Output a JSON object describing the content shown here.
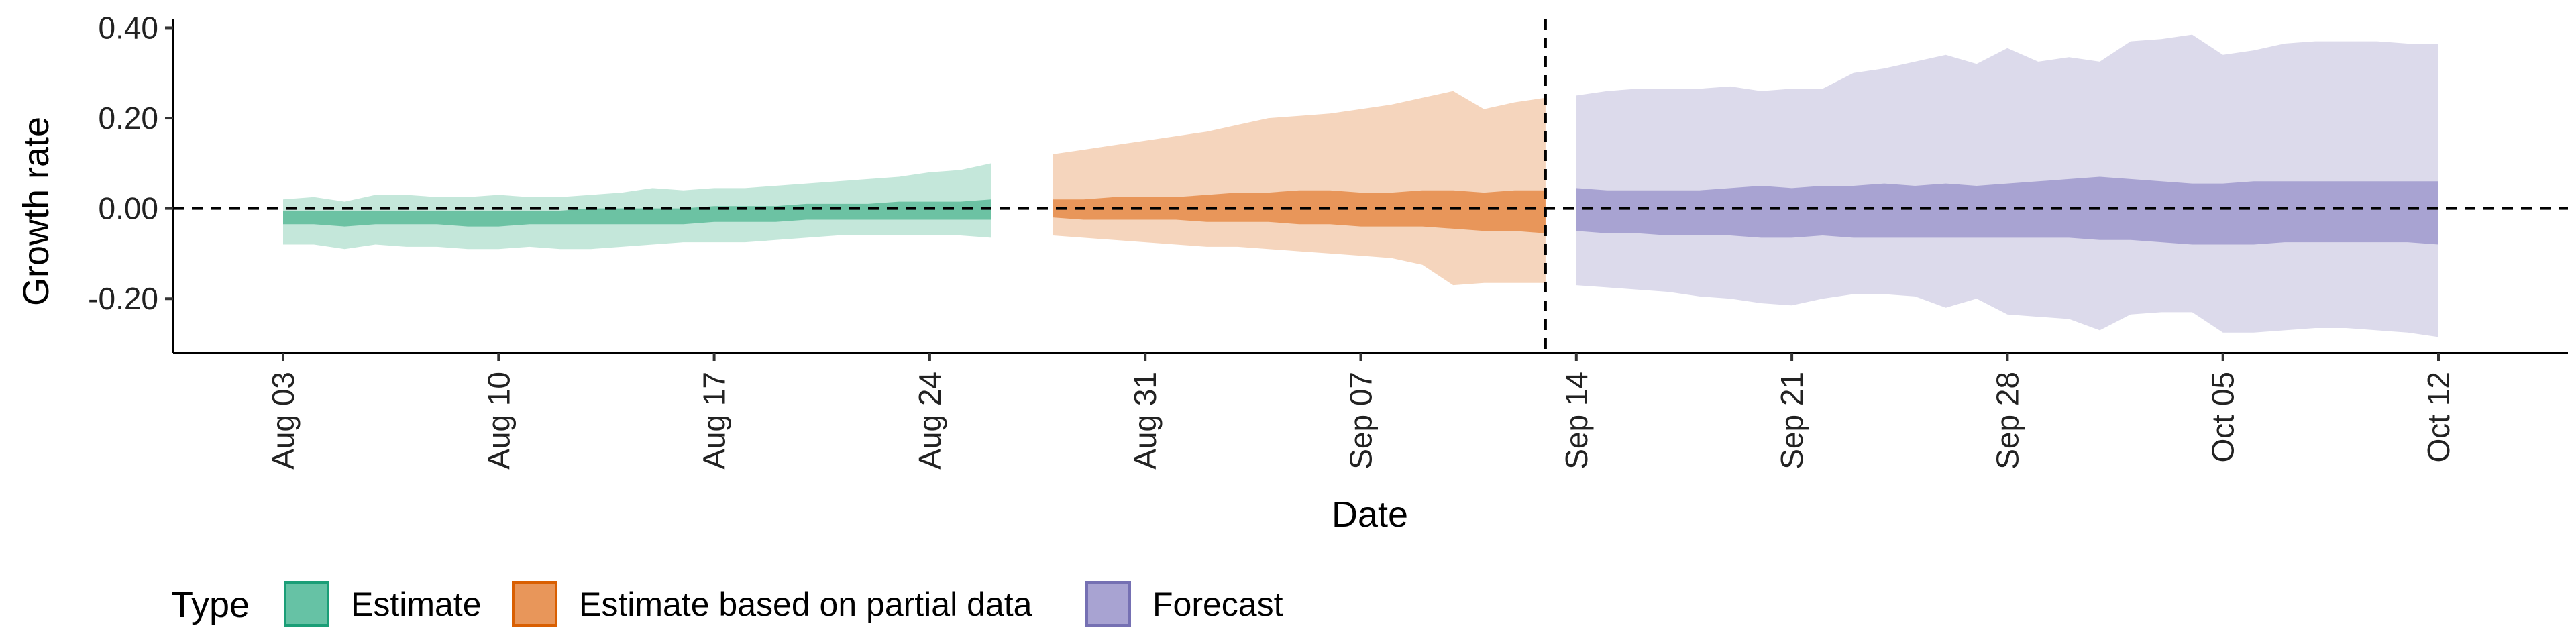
{
  "chart_data": {
    "type": "area",
    "title": "",
    "xlabel": "Date",
    "ylabel": "Growth rate",
    "ylim": [
      -0.32,
      0.42
    ],
    "x_start_date": "Aug 03",
    "x_range_days": [
      -5,
      80
    ],
    "x_ticks": [
      {
        "label": "Aug 03",
        "day": 0
      },
      {
        "label": "Aug 10",
        "day": 7
      },
      {
        "label": "Aug 17",
        "day": 14
      },
      {
        "label": "Aug 24",
        "day": 21
      },
      {
        "label": "Aug 31",
        "day": 28
      },
      {
        "label": "Sep 07",
        "day": 35
      },
      {
        "label": "Sep 14",
        "day": 42
      },
      {
        "label": "Sep 21",
        "day": 49
      },
      {
        "label": "Sep 28",
        "day": 56
      },
      {
        "label": "Oct 05",
        "day": 63
      },
      {
        "label": "Oct 12",
        "day": 70
      }
    ],
    "y_ticks": [
      {
        "label": "0.40",
        "value": 0.4
      },
      {
        "label": "0.20",
        "value": 0.2
      },
      {
        "label": "0.00",
        "value": 0.0
      },
      {
        "label": "-0.20",
        "value": -0.2
      }
    ],
    "reference_lines": {
      "horizontal_y": 0.0,
      "vertical_day": 41
    },
    "legend": {
      "title": "Type",
      "position": "bottom-left",
      "entries": [
        {
          "label": "Estimate",
          "fill": "#66c2a5",
          "border": "#1b9e77"
        },
        {
          "label": "Estimate based on partial data",
          "fill": "#e8965a",
          "border": "#d95f02"
        },
        {
          "label": "Forecast",
          "fill": "#a8a3d2",
          "border": "#7570b3"
        }
      ]
    },
    "series": [
      {
        "name": "Estimate",
        "color_outer": "#c4e7da",
        "color_inner": "#6cc2a3",
        "x": [
          0,
          1,
          2,
          3,
          4,
          5,
          6,
          7,
          8,
          9,
          10,
          11,
          12,
          13,
          14,
          15,
          16,
          17,
          18,
          19,
          20,
          21,
          22,
          23
        ],
        "outer_upper": [
          0.02,
          0.025,
          0.015,
          0.03,
          0.03,
          0.025,
          0.025,
          0.03,
          0.025,
          0.025,
          0.03,
          0.035,
          0.045,
          0.04,
          0.045,
          0.045,
          0.05,
          0.055,
          0.06,
          0.065,
          0.07,
          0.08,
          0.085,
          0.1
        ],
        "outer_lower": [
          -0.08,
          -0.08,
          -0.09,
          -0.08,
          -0.085,
          -0.085,
          -0.09,
          -0.09,
          -0.085,
          -0.09,
          -0.09,
          -0.085,
          -0.08,
          -0.075,
          -0.075,
          -0.075,
          -0.07,
          -0.065,
          -0.06,
          -0.06,
          -0.06,
          -0.06,
          -0.06,
          -0.065
        ],
        "inner_upper": [
          -0.005,
          -0.005,
          -0.005,
          -0.005,
          -0.005,
          -0.005,
          -0.005,
          -0.005,
          -0.005,
          -0.005,
          0.0,
          0.0,
          0.0,
          0.0,
          0.005,
          0.005,
          0.005,
          0.01,
          0.01,
          0.01,
          0.015,
          0.015,
          0.015,
          0.02
        ],
        "inner_lower": [
          -0.035,
          -0.035,
          -0.04,
          -0.035,
          -0.035,
          -0.035,
          -0.04,
          -0.04,
          -0.035,
          -0.035,
          -0.035,
          -0.035,
          -0.035,
          -0.035,
          -0.03,
          -0.03,
          -0.03,
          -0.025,
          -0.025,
          -0.025,
          -0.025,
          -0.025,
          -0.025,
          -0.025
        ]
      },
      {
        "name": "Estimate based on partial data",
        "color_outer": "#f5d5bd",
        "color_inner": "#e8965a",
        "x": [
          25,
          26,
          27,
          28,
          29,
          30,
          31,
          32,
          33,
          34,
          35,
          36,
          37,
          38,
          39,
          40,
          41
        ],
        "outer_upper": [
          0.12,
          0.13,
          0.14,
          0.15,
          0.16,
          0.17,
          0.185,
          0.2,
          0.205,
          0.21,
          0.22,
          0.23,
          0.245,
          0.26,
          0.22,
          0.235,
          0.245
        ],
        "outer_lower": [
          -0.06,
          -0.065,
          -0.07,
          -0.075,
          -0.08,
          -0.085,
          -0.085,
          -0.09,
          -0.095,
          -0.1,
          -0.105,
          -0.11,
          -0.125,
          -0.17,
          -0.165,
          -0.165,
          -0.165
        ],
        "inner_upper": [
          0.02,
          0.02,
          0.025,
          0.025,
          0.025,
          0.03,
          0.035,
          0.035,
          0.04,
          0.04,
          0.035,
          0.035,
          0.04,
          0.04,
          0.035,
          0.04,
          0.04
        ],
        "inner_lower": [
          -0.02,
          -0.025,
          -0.025,
          -0.025,
          -0.025,
          -0.03,
          -0.03,
          -0.03,
          -0.035,
          -0.035,
          -0.04,
          -0.04,
          -0.04,
          -0.045,
          -0.05,
          -0.05,
          -0.055
        ]
      },
      {
        "name": "Forecast",
        "color_outer": "#dcdaeb",
        "color_inner": "#a8a3d2",
        "x": [
          42,
          43,
          44,
          45,
          46,
          47,
          48,
          49,
          50,
          51,
          52,
          53,
          54,
          55,
          56,
          57,
          58,
          59,
          60,
          61,
          62,
          63,
          64,
          65,
          66,
          67,
          68,
          69,
          70
        ],
        "outer_upper": [
          0.25,
          0.26,
          0.265,
          0.265,
          0.265,
          0.27,
          0.26,
          0.265,
          0.265,
          0.3,
          0.31,
          0.325,
          0.34,
          0.32,
          0.355,
          0.325,
          0.335,
          0.325,
          0.37,
          0.375,
          0.385,
          0.34,
          0.35,
          0.365,
          0.37,
          0.37,
          0.37,
          0.365,
          0.365
        ],
        "outer_lower": [
          -0.17,
          -0.175,
          -0.18,
          -0.185,
          -0.195,
          -0.2,
          -0.21,
          -0.215,
          -0.2,
          -0.19,
          -0.19,
          -0.195,
          -0.22,
          -0.2,
          -0.235,
          -0.24,
          -0.245,
          -0.27,
          -0.235,
          -0.23,
          -0.23,
          -0.275,
          -0.275,
          -0.27,
          -0.265,
          -0.265,
          -0.27,
          -0.275,
          -0.285
        ],
        "inner_upper": [
          0.045,
          0.04,
          0.04,
          0.04,
          0.04,
          0.045,
          0.05,
          0.045,
          0.05,
          0.05,
          0.055,
          0.05,
          0.055,
          0.05,
          0.055,
          0.06,
          0.065,
          0.07,
          0.065,
          0.06,
          0.055,
          0.055,
          0.06,
          0.06,
          0.06,
          0.06,
          0.06,
          0.06,
          0.06
        ],
        "inner_lower": [
          -0.05,
          -0.055,
          -0.055,
          -0.06,
          -0.06,
          -0.06,
          -0.065,
          -0.065,
          -0.06,
          -0.065,
          -0.065,
          -0.065,
          -0.065,
          -0.065,
          -0.065,
          -0.065,
          -0.065,
          -0.07,
          -0.07,
          -0.075,
          -0.08,
          -0.08,
          -0.08,
          -0.075,
          -0.075,
          -0.075,
          -0.075,
          -0.075,
          -0.08
        ]
      }
    ]
  }
}
